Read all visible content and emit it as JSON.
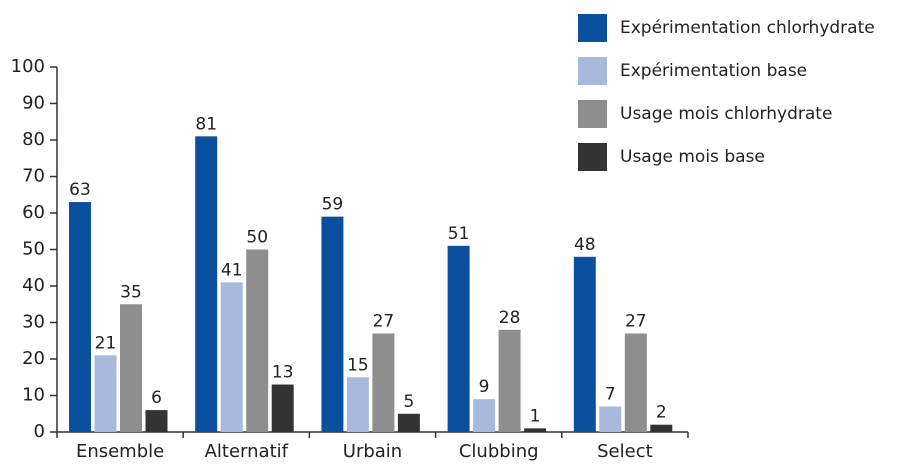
{
  "chart_data": {
    "type": "bar",
    "categories": [
      "Ensemble",
      "Alternatif",
      "Urbain",
      "Clubbing",
      "Select"
    ],
    "series": [
      {
        "name": "Expérimentation chlorhydrate",
        "color": "#0b4f9f",
        "values": [
          63,
          81,
          59,
          51,
          48
        ]
      },
      {
        "name": "Expérimentation base",
        "color": "#a9b9de",
        "values": [
          21,
          41,
          15,
          9,
          7
        ]
      },
      {
        "name": "Usage mois chlorhydrate",
        "color": "#8e8e8e",
        "values": [
          35,
          50,
          27,
          28,
          27
        ]
      },
      {
        "name": "Usage mois base",
        "color": "#333333",
        "values": [
          6,
          13,
          5,
          1,
          2
        ]
      }
    ],
    "ylim": [
      0,
      100
    ],
    "yticks": [
      0,
      10,
      20,
      30,
      40,
      50,
      60,
      70,
      80,
      90,
      100
    ],
    "legend": "top-right"
  }
}
